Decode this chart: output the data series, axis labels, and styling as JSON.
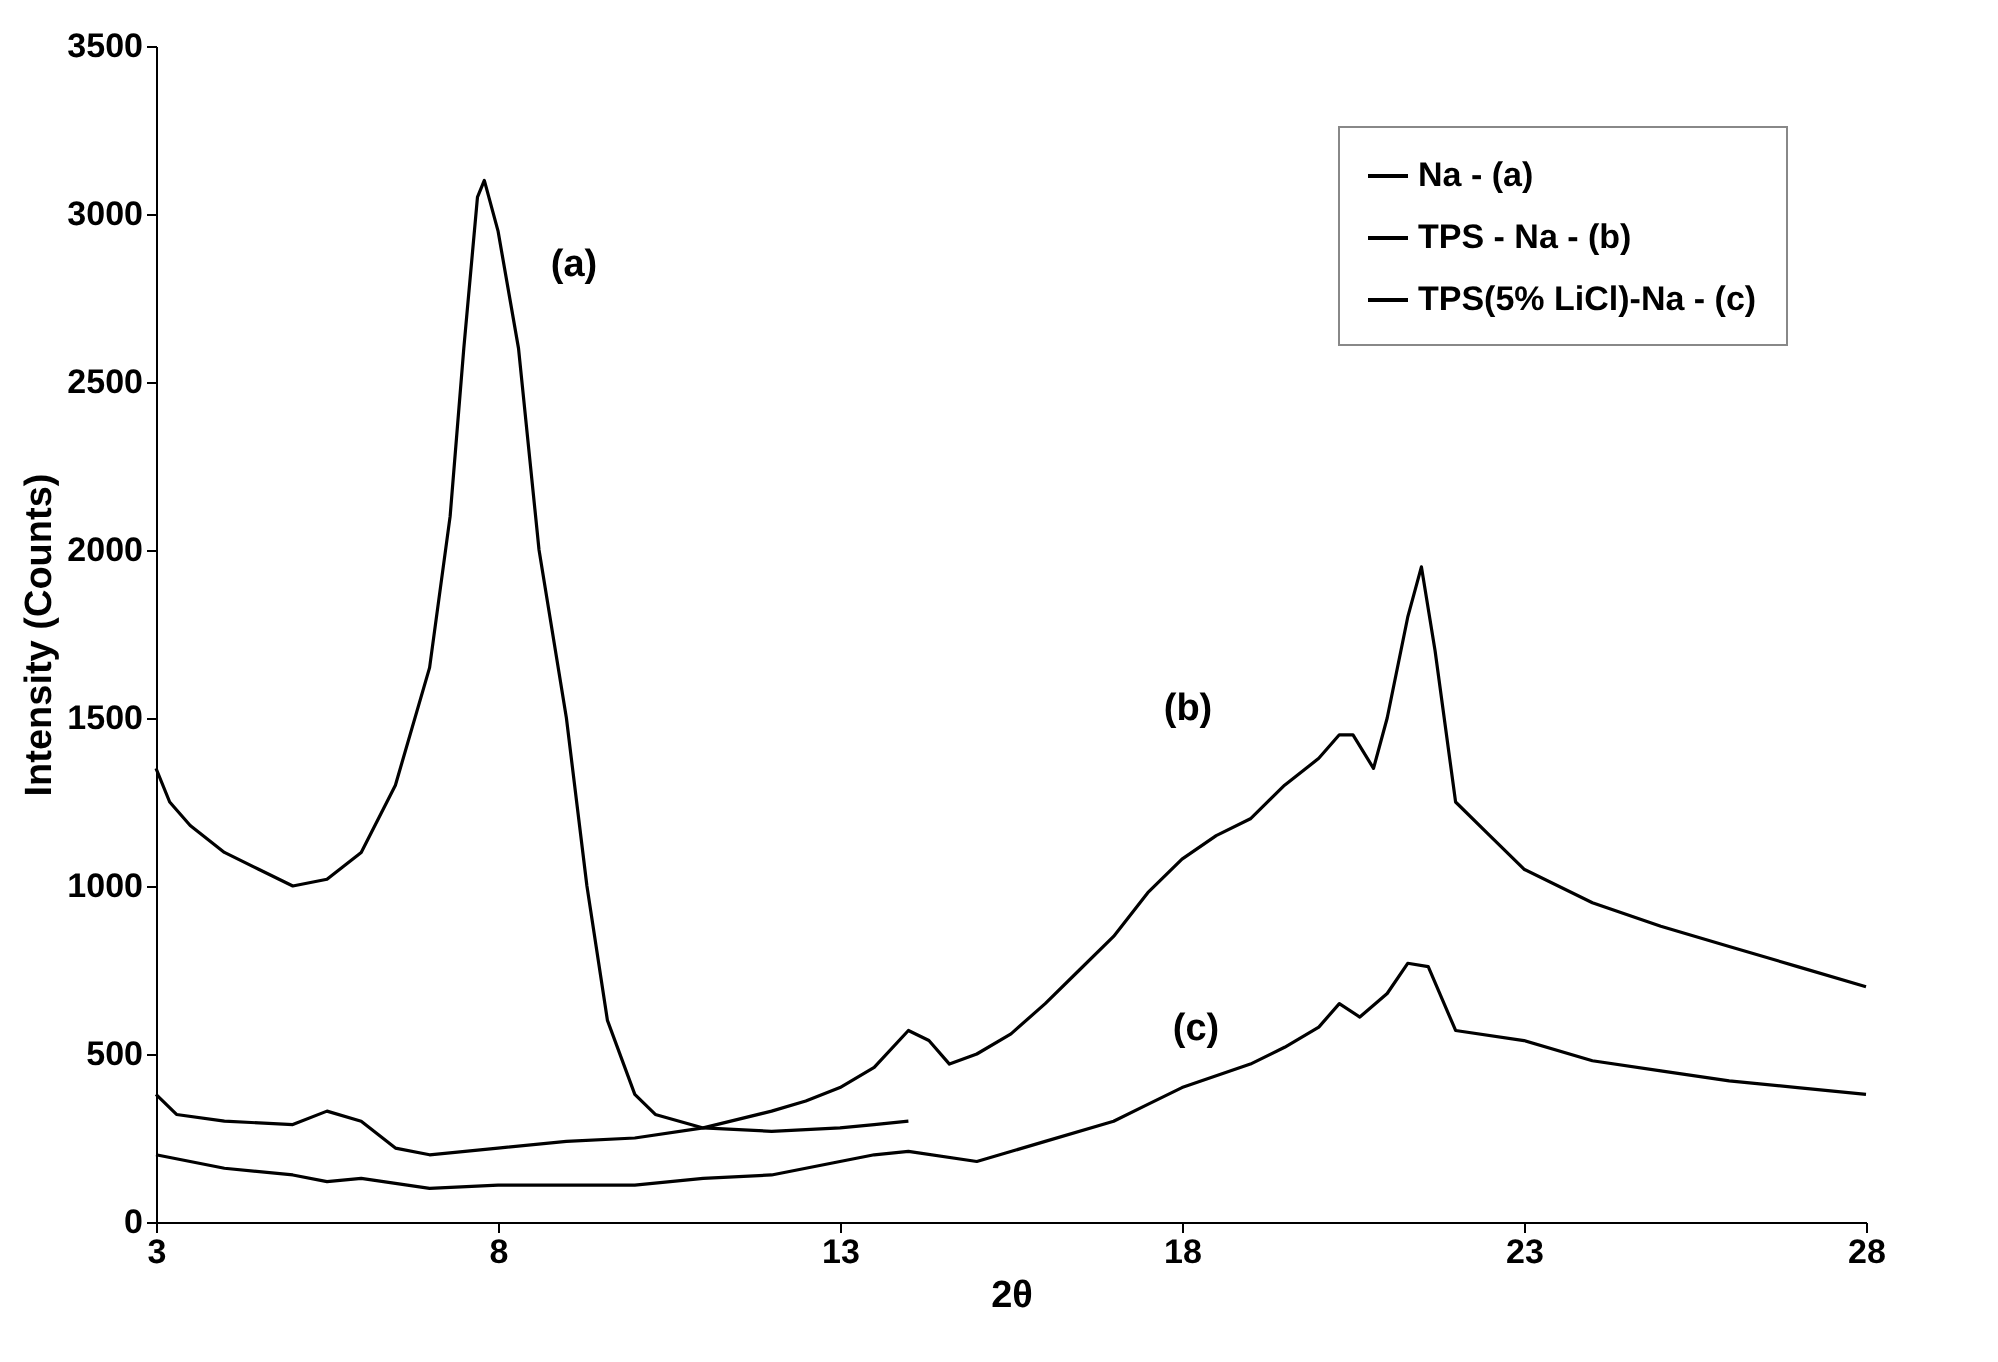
{
  "chart_data": {
    "type": "line",
    "xlabel": "2θ",
    "ylabel": "Intensity (Counts)",
    "xlim": [
      3,
      28
    ],
    "xticks": [
      3,
      8,
      13,
      18,
      23,
      28
    ],
    "ylim": [
      0,
      3500
    ],
    "yticks": [
      0,
      500,
      1000,
      1500,
      2000,
      2500,
      3000,
      3500
    ],
    "grid": false,
    "legend": "top right",
    "marker": "none",
    "line_style": "solid",
    "series": [
      {
        "name": "Na - (a)",
        "color": "#000000",
        "x": [
          3,
          3.2,
          3.5,
          4,
          4.5,
          5,
          5.5,
          6,
          6.5,
          7,
          7.3,
          7.5,
          7.7,
          7.8,
          8,
          8.3,
          8.6,
          9,
          9.3,
          9.6,
          10,
          10.3,
          11,
          12,
          13,
          13.5,
          14
        ],
        "values": [
          1350,
          1250,
          1180,
          1100,
          1050,
          1000,
          1020,
          1100,
          1300,
          1650,
          2100,
          2600,
          3050,
          3100,
          2950,
          2600,
          2000,
          1500,
          1000,
          600,
          380,
          320,
          280,
          270,
          280,
          290,
          300
        ]
      },
      {
        "name": "TPS - Na - (b)",
        "color": "#000000",
        "x": [
          3,
          3.3,
          4,
          5,
          5.5,
          6,
          6.5,
          7,
          8,
          9,
          10,
          11,
          12,
          12.5,
          13,
          13.5,
          14,
          14.3,
          14.6,
          15,
          15.5,
          16,
          16.5,
          17,
          17.5,
          18,
          18.5,
          19,
          19.5,
          20,
          20.3,
          20.5,
          20.8,
          21,
          21.3,
          21.5,
          21.7,
          22,
          22.5,
          23,
          24,
          25,
          26,
          27,
          28
        ],
        "values": [
          380,
          320,
          300,
          290,
          330,
          300,
          220,
          200,
          220,
          240,
          250,
          280,
          330,
          360,
          400,
          460,
          570,
          540,
          470,
          500,
          560,
          650,
          750,
          850,
          980,
          1080,
          1150,
          1200,
          1300,
          1380,
          1450,
          1450,
          1350,
          1500,
          1800,
          1950,
          1700,
          1250,
          1150,
          1050,
          950,
          880,
          820,
          760,
          700
        ]
      },
      {
        "name": "TPS(5% LiCl)-Na - (c)",
        "color": "#000000",
        "x": [
          3,
          4,
          5,
          5.5,
          6,
          7,
          8,
          9,
          10,
          11,
          12,
          13,
          13.5,
          14,
          15,
          16,
          17,
          17.5,
          18,
          19,
          19.5,
          20,
          20.3,
          20.6,
          21,
          21.3,
          21.6,
          22,
          23,
          24,
          25,
          26,
          27,
          28
        ],
        "values": [
          200,
          160,
          140,
          120,
          130,
          100,
          110,
          110,
          110,
          130,
          140,
          180,
          200,
          210,
          180,
          240,
          300,
          350,
          400,
          470,
          520,
          580,
          650,
          610,
          680,
          770,
          760,
          570,
          540,
          480,
          450,
          420,
          400,
          380
        ]
      }
    ],
    "annotations": [
      "(a)",
      "(b)",
      "(c)"
    ]
  }
}
